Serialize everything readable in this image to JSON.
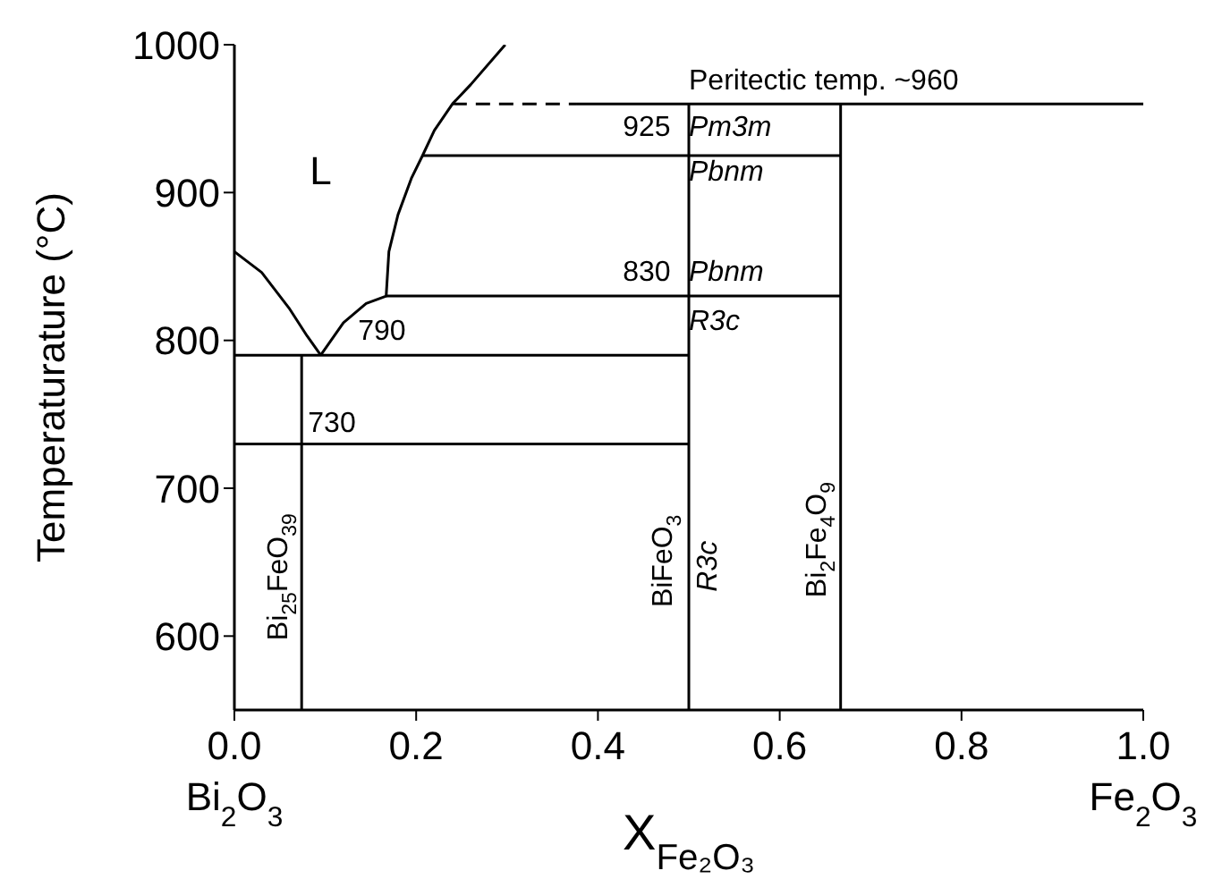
{
  "chart_data": {
    "type": "line",
    "xlabel": "X$_{Fe₂O₃}$",
    "ylabel": "Temperaturature (°C)",
    "xlim": [
      0,
      1
    ],
    "ylim": [
      550,
      1000
    ],
    "xticks": [
      {
        "value": 0,
        "label": "0.0"
      },
      {
        "value": 0.2,
        "label": "0.2"
      },
      {
        "value": 0.4,
        "label": "0.4"
      },
      {
        "value": 0.6,
        "label": "0.6"
      },
      {
        "value": 0.8,
        "label": "0.8"
      },
      {
        "value": 1,
        "label": "1.0"
      }
    ],
    "yticks": [
      600,
      700,
      800,
      900,
      1000
    ],
    "marker": "none",
    "series": [
      {
        "color": "#000000",
        "x": [
          0,
          0.03,
          0.06,
          0.08,
          0.095
        ],
        "values": [
          860,
          846,
          822,
          803,
          790
        ]
      },
      {
        "color": "#000000",
        "x": [
          0.095,
          0.12,
          0.145,
          0.167,
          0.17,
          0.18,
          0.195,
          0.207,
          0.22,
          0.24,
          0.26,
          0.298
        ],
        "values": [
          790,
          812,
          825,
          830,
          860,
          885,
          910,
          925,
          942,
          960,
          973,
          1000
        ]
      },
      {
        "color": "#000000",
        "line_style": "dashed",
        "x": [
          0.24,
          0.376
        ],
        "values": [
          960,
          960
        ]
      },
      {
        "color": "#000000",
        "x": [
          0.376,
          1
        ],
        "values": [
          960,
          960
        ]
      },
      {
        "color": "#000000",
        "x": [
          0.207,
          0.667
        ],
        "values": [
          925,
          925
        ]
      },
      {
        "color": "#000000",
        "x": [
          0.167,
          0.667
        ],
        "values": [
          830,
          830
        ]
      },
      {
        "color": "#000000",
        "x": [
          0,
          0.5
        ],
        "values": [
          790,
          790
        ]
      },
      {
        "color": "#000000",
        "x": [
          0,
          0.5
        ],
        "values": [
          730,
          730
        ]
      },
      {
        "color": "#000000",
        "x": [
          0.074,
          0.074
        ],
        "values": [
          550,
          790
        ]
      },
      {
        "color": "#000000",
        "x": [
          0.5,
          0.5
        ],
        "values": [
          550,
          960
        ]
      },
      {
        "color": "#000000",
        "x": [
          0.667,
          0.667
        ],
        "values": [
          550,
          960
        ]
      }
    ],
    "annotations": [
      "L",
      "790",
      "730",
      "830",
      "925",
      "Peritectic temp. ~960",
      "Pm3m",
      "Pbnm",
      "Pbnm",
      "R3c",
      "Bi$_{25}$FeO$_{39}$",
      "BiFeO$_{3}$",
      "R3c",
      "Bi$_{2}$Fe$_{4}$O$_{9}$",
      "Bi$_{2}$O$_{3}$",
      "Fe$_{2}$O$_{3}$"
    ]
  }
}
